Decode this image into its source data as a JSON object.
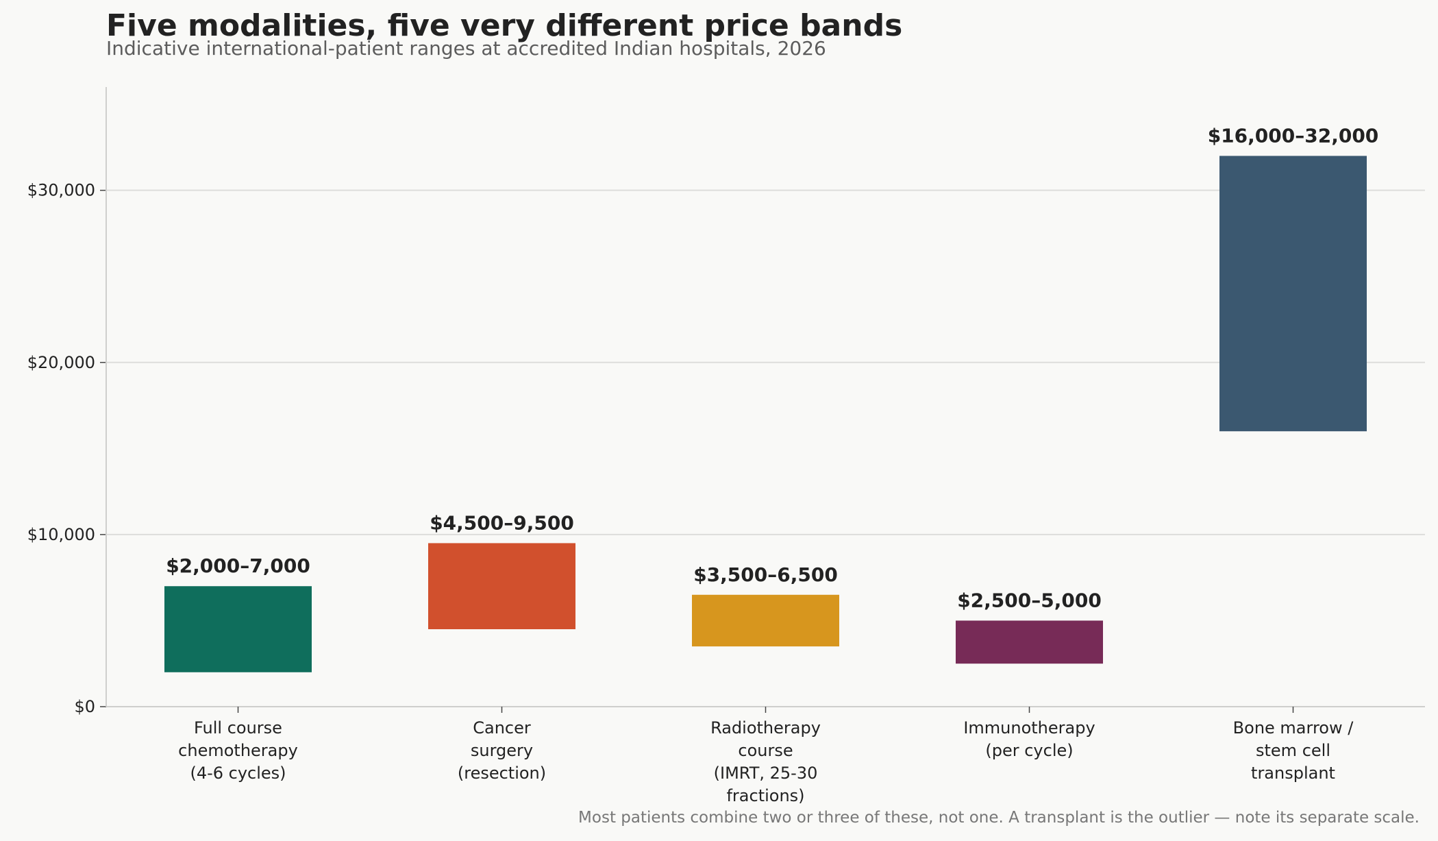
{
  "title": "Five modalities, five very different price bands",
  "subtitle": "Indicative international-patient ranges at accredited Indian hospitals, 2026",
  "footnote": "Most patients combine two or three of these, not one. A transplant is the outlier — note its separate scale.",
  "chart_data": {
    "type": "bar",
    "bar_style": "floating-range",
    "categories": [
      [
        "Full course",
        "chemotherapy",
        "(4-6 cycles)"
      ],
      [
        "Cancer",
        "surgery",
        "(resection)"
      ],
      [
        "Radiotherapy",
        "course",
        "(IMRT, 25-30",
        "fractions)"
      ],
      [
        "Immunotherapy",
        "(per cycle)"
      ],
      [
        "Bone marrow /",
        "stem cell",
        "transplant"
      ]
    ],
    "ranges": [
      {
        "low": 2000,
        "high": 7000,
        "label": "$2,000–7,000",
        "color": "#0f6e5c"
      },
      {
        "low": 4500,
        "high": 9500,
        "label": "$4,500–9,500",
        "color": "#d1502d"
      },
      {
        "low": 3500,
        "high": 6500,
        "label": "$3,500–6,500",
        "color": "#d7961e"
      },
      {
        "low": 2500,
        "high": 5000,
        "label": "$2,500–5,000",
        "color": "#772b57"
      },
      {
        "low": 16000,
        "high": 32000,
        "label": "$16,000–32,000",
        "color": "#3b5870"
      }
    ],
    "ylim": [
      0,
      36000
    ],
    "yticks": [
      0,
      10000,
      20000,
      30000
    ],
    "ytick_labels": [
      "$0",
      "$10,000",
      "$20,000",
      "$30,000"
    ],
    "grid": "horizontal",
    "xlabel": "",
    "ylabel": ""
  }
}
